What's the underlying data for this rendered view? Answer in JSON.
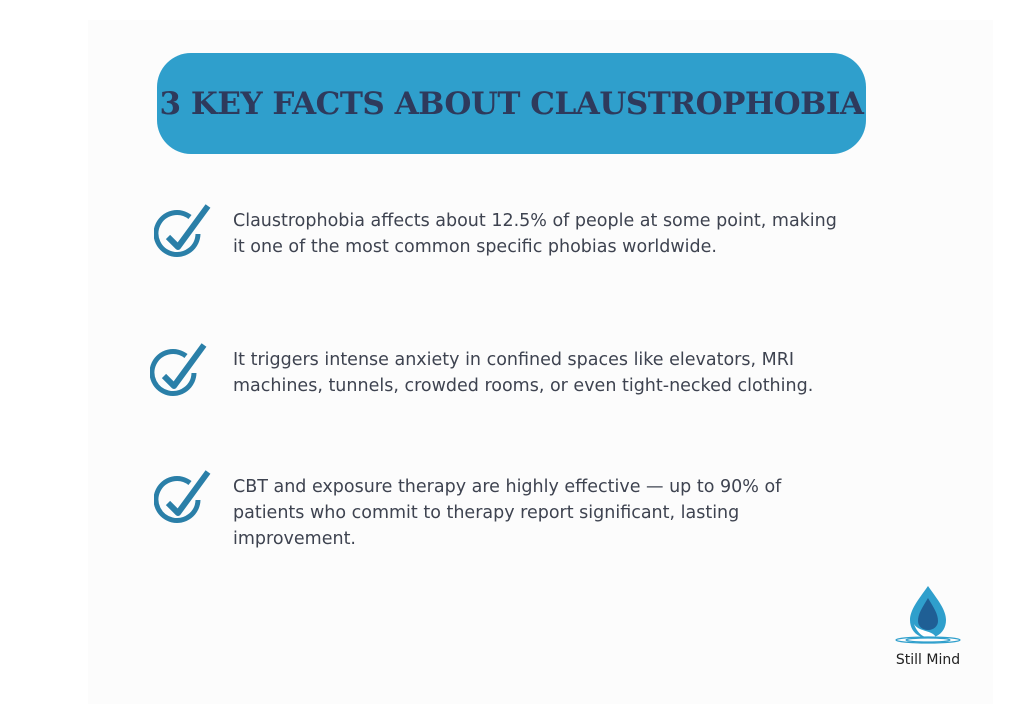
{
  "title": "3 KEY FACTS ABOUT CLAUSTROPHOBIA",
  "facts": [
    {
      "icon": "check-circle-icon",
      "text": "Claustrophobia affects about 12.5% of people at some point, making it one of the most common specific phobias worldwide."
    },
    {
      "icon": "check-circle-icon",
      "text": "It triggers intense anxiety in confined spaces like elevators, MRI machines, tunnels, crowded rooms, or even tight-necked clothing."
    },
    {
      "icon": "check-circle-icon",
      "text": "CBT and exposure therapy are highly effective — up to 90% of patients who commit to therapy report significant, lasting improvement."
    }
  ],
  "logo": {
    "name": "Still Mind"
  },
  "colors": {
    "accent": "#2f9fcc",
    "title": "#2e3a5c",
    "icon": "#2a7fa8",
    "text": "#3e4350"
  }
}
